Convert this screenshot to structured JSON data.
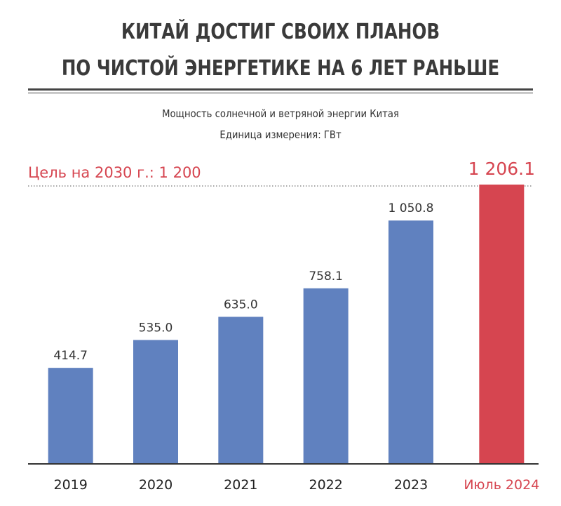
{
  "header": {
    "title_line1": "КИТАЙ ДОСТИГ СВОИХ ПЛАНОВ",
    "title_line2": "ПО ЧИСТОЙ ЭНЕРГЕТИКЕ НА 6 ЛЕТ РАНЬШЕ",
    "subtitle": "Мощность солнечной и ветряной энергии Китая",
    "unit_label": "Единица измерения: ГВт"
  },
  "chart_data": {
    "type": "bar",
    "categories": [
      "2019",
      "2020",
      "2021",
      "2022",
      "2023",
      "Июль 2024"
    ],
    "values": [
      414.7,
      535.0,
      635.0,
      758.1,
      1050.8,
      1206.1
    ],
    "value_labels": [
      "414.7",
      "535.0",
      "635.0",
      "758.1",
      "1 050.8",
      "1 206.1"
    ],
    "highlight_index": 5,
    "target": {
      "label": "Цель на 2030 г.: 1 200",
      "value": 1200
    },
    "ylim": [
      0,
      1206.1
    ],
    "grid": false,
    "colors": {
      "bar": "#6081bf",
      "highlight": "#d64550",
      "text": "#333333"
    }
  }
}
